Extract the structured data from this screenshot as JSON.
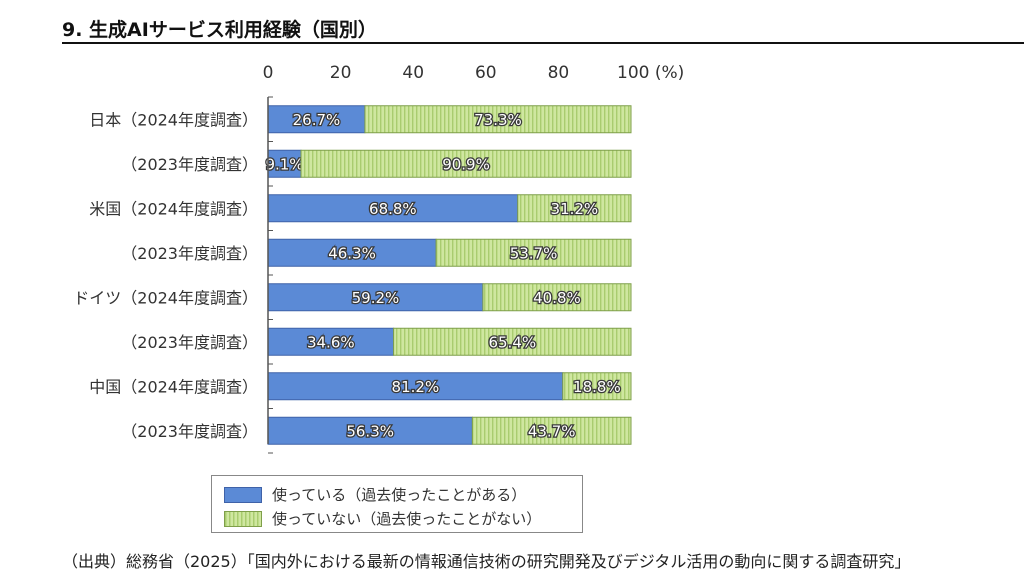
{
  "header": {
    "title": "9. 生成AIサービス利用経験（国別）"
  },
  "colors": {
    "used": "#5b8ad6",
    "used_border": "#3f62a8",
    "unused": "#cfe7a0",
    "unused_stripe": "#a9cc6f",
    "unused_border": "#7f9f4a",
    "axis": "#555555"
  },
  "chart_data": {
    "type": "bar",
    "orientation": "horizontal",
    "stacked": true,
    "x_ticks": [
      "0",
      "20",
      "40",
      "60",
      "80",
      "100 (%)"
    ],
    "xlim": [
      0,
      100
    ],
    "categories": [
      "日本（2024年度調査）",
      "（2023年度調査）",
      "米国（2024年度調査）",
      "（2023年度調査）",
      "ドイツ（2024年度調査）",
      "（2023年度調査）",
      "中国（2024年度調査）",
      "（2023年度調査）"
    ],
    "series": [
      {
        "name": "使っている（過去使ったことがある）",
        "values": [
          26.7,
          9.1,
          68.8,
          46.3,
          59.2,
          34.6,
          81.2,
          56.3
        ],
        "labels": [
          "26.7%",
          "9.1%",
          "68.8%",
          "46.3%",
          "59.2%",
          "34.6%",
          "81.2%",
          "56.3%"
        ]
      },
      {
        "name": "使っていない（過去使ったことがない）",
        "values": [
          73.3,
          90.9,
          31.2,
          53.7,
          40.8,
          65.4,
          18.8,
          43.7
        ],
        "labels": [
          "73.3%",
          "90.9%",
          "31.2%",
          "53.7%",
          "40.8%",
          "65.4%",
          "18.8%",
          "43.7%"
        ]
      }
    ],
    "legend_position": "bottom"
  },
  "legend": {
    "used": "使っている（過去使ったことがある）",
    "unused": "使っていない（過去使ったことがない）"
  },
  "source": "（出典）総務省（2025）「国内外における最新の情報通信技術の研究開発及びデジタル活用の動向に関する調査研究」"
}
